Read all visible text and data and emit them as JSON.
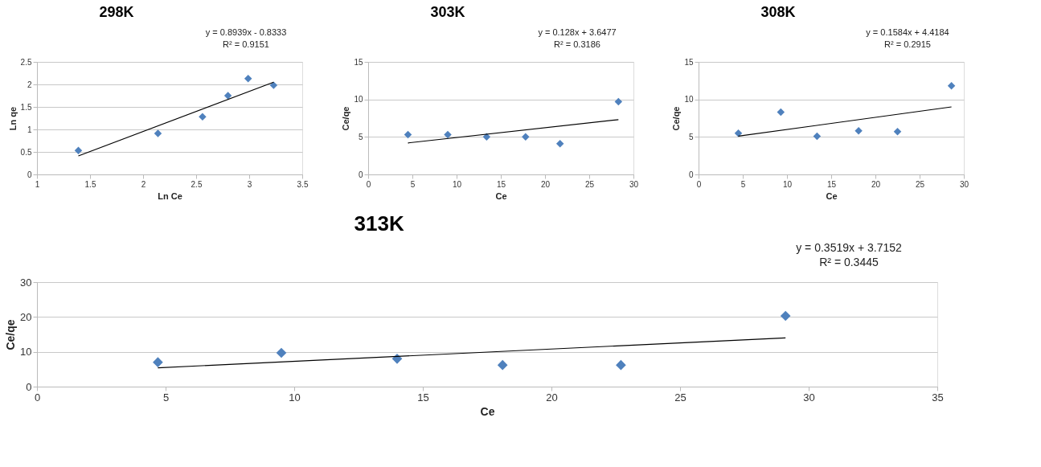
{
  "chart_data": [
    {
      "type": "scatter",
      "title": "298K",
      "xlabel": "Ln Ce",
      "ylabel": "Ln qe",
      "xlim": [
        1,
        3.5
      ],
      "xticks": [
        1,
        1.5,
        2,
        2.5,
        3,
        3.5
      ],
      "ylim": [
        0,
        2.5
      ],
      "yticks": [
        0,
        0.5,
        1,
        1.5,
        2,
        2.5
      ],
      "grid": "y",
      "legend": false,
      "annotations": [
        "y = 0.8939x - 0.8333",
        "R² = 0.9151"
      ],
      "series": [
        {
          "type": "scatter",
          "marker": "diamond",
          "color": "#4f81bd",
          "x": [
            1.39,
            2.14,
            2.56,
            2.8,
            2.99,
            3.23
          ],
          "values": [
            0.53,
            0.91,
            1.28,
            1.75,
            2.13,
            1.98
          ]
        },
        {
          "type": "line",
          "color": "#000000",
          "line_style": "solid",
          "x": [
            1.39,
            3.23
          ],
          "values": [
            0.41,
            2.05
          ]
        }
      ]
    },
    {
      "type": "scatter",
      "title": "303K",
      "xlabel": "Ce",
      "ylabel": "Ce/qe",
      "xlim": [
        0,
        30
      ],
      "xticks": [
        0,
        5,
        10,
        15,
        20,
        25,
        30
      ],
      "ylim": [
        0,
        15
      ],
      "yticks": [
        0,
        5,
        10,
        15
      ],
      "grid": "y",
      "legend": false,
      "annotations": [
        "y = 0.128x + 3.6477",
        "R² = 0.3186"
      ],
      "series": [
        {
          "type": "scatter",
          "marker": "diamond",
          "color": "#4f81bd",
          "x": [
            4.5,
            9,
            13.4,
            17.8,
            21.7,
            28.3
          ],
          "values": [
            5.3,
            5.3,
            5.0,
            5.0,
            4.1,
            9.7
          ]
        },
        {
          "type": "line",
          "color": "#000000",
          "line_style": "solid",
          "x": [
            4.5,
            28.3
          ],
          "values": [
            4.2,
            7.3
          ]
        }
      ]
    },
    {
      "type": "scatter",
      "title": "308K",
      "xlabel": "Ce",
      "ylabel": "Ce/qe",
      "xlim": [
        0,
        30
      ],
      "xticks": [
        0,
        5,
        10,
        15,
        20,
        25,
        30
      ],
      "ylim": [
        0,
        15
      ],
      "yticks": [
        0,
        5,
        10,
        15
      ],
      "grid": "y",
      "legend": false,
      "annotations": [
        "y = 0.1584x + 4.4184",
        "R² = 0.2915"
      ],
      "series": [
        {
          "type": "scatter",
          "marker": "diamond",
          "color": "#4f81bd",
          "x": [
            4.5,
            9.3,
            13.4,
            18.1,
            22.5,
            28.6
          ],
          "values": [
            5.5,
            8.3,
            5.1,
            5.8,
            5.7,
            11.8
          ]
        },
        {
          "type": "line",
          "color": "#000000",
          "line_style": "solid",
          "x": [
            4.5,
            28.6
          ],
          "values": [
            5.1,
            9.0
          ]
        }
      ]
    },
    {
      "type": "scatter",
      "title": "313K",
      "xlabel": "Ce",
      "ylabel": "Ce/qe",
      "xlim": [
        0,
        35
      ],
      "xticks": [
        0,
        5,
        10,
        15,
        20,
        25,
        30,
        35
      ],
      "ylim": [
        0,
        30
      ],
      "yticks": [
        0,
        10,
        20,
        30
      ],
      "grid": "y",
      "legend": false,
      "annotations": [
        "y = 0.3519x + 3.7152",
        "R² = 0.3445"
      ],
      "series": [
        {
          "type": "scatter",
          "marker": "diamond",
          "color": "#4f81bd",
          "x": [
            4.7,
            9.5,
            14,
            18.1,
            22.7,
            29.1
          ],
          "values": [
            7,
            9.7,
            8,
            6.2,
            6.2,
            20.3
          ]
        },
        {
          "type": "line",
          "color": "#000000",
          "line_style": "solid",
          "x": [
            4.7,
            29.1
          ],
          "values": [
            5.4,
            14.0
          ]
        }
      ]
    }
  ]
}
